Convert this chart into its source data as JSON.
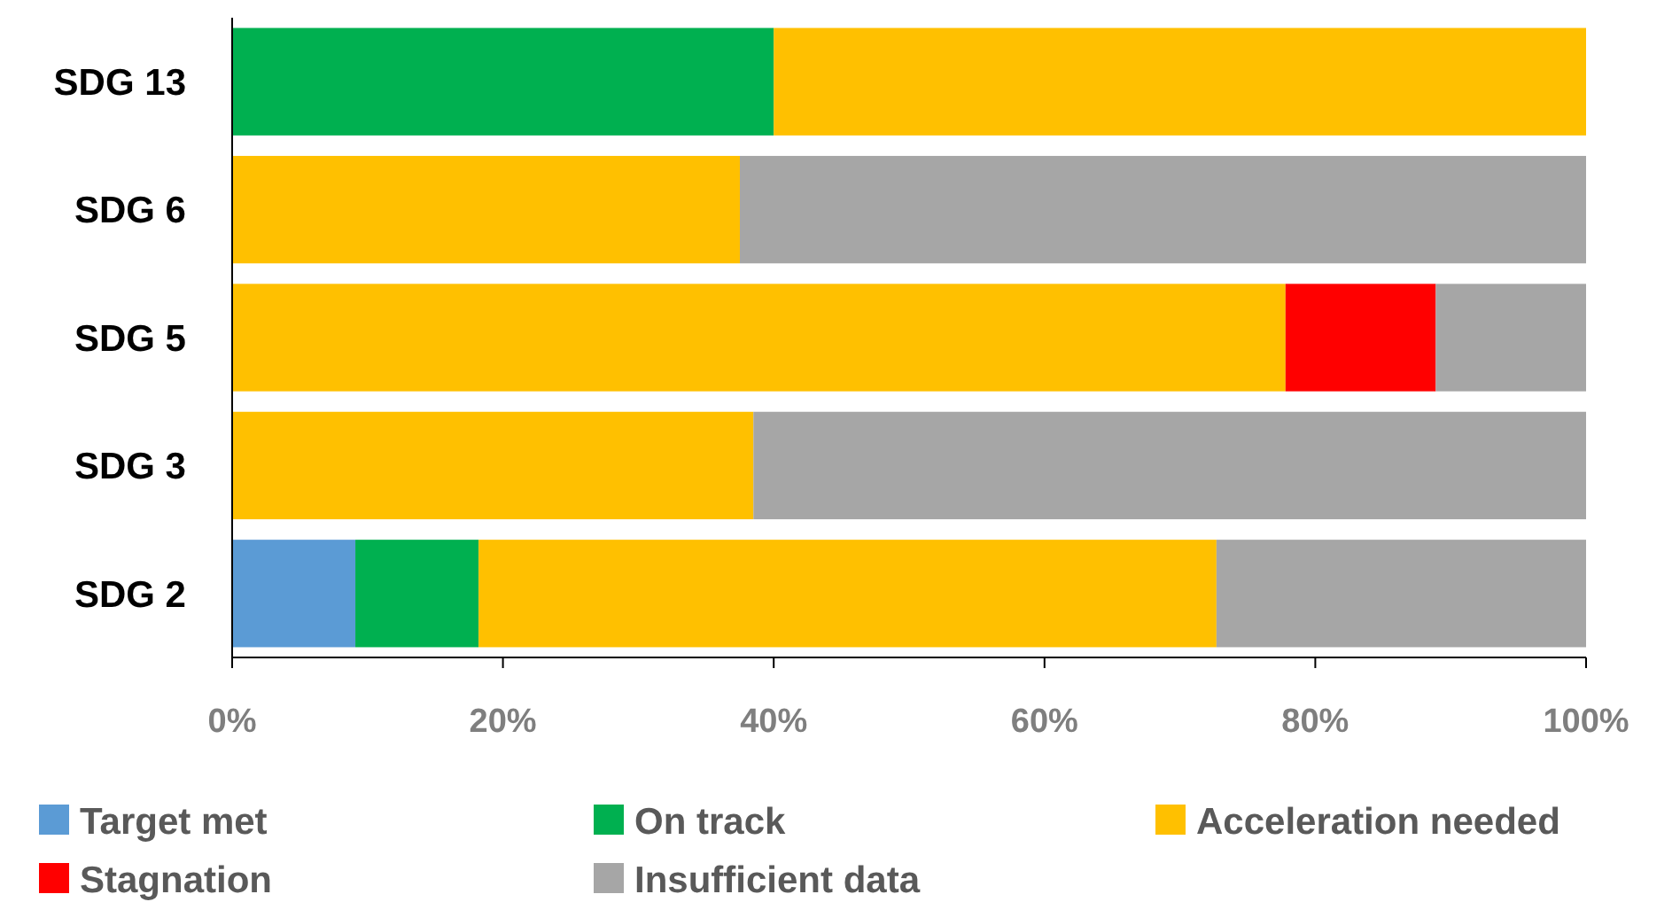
{
  "chart_data": {
    "type": "bar",
    "orientation": "horizontal",
    "stacked": true,
    "categories": [
      "SDG 13",
      "SDG 6",
      "SDG 5",
      "SDG 3",
      "SDG 2"
    ],
    "series": [
      {
        "name": "Target met",
        "color": "#5b9bd5",
        "values": [
          0,
          0,
          0,
          0,
          9.1
        ]
      },
      {
        "name": "On track",
        "color": "#00b050",
        "values": [
          40,
          0,
          0,
          0,
          9.1
        ]
      },
      {
        "name": "Acceleration needed",
        "color": "#ffc000",
        "values": [
          60,
          37.5,
          77.8,
          38.5,
          54.5
        ]
      },
      {
        "name": "Stagnation",
        "color": "#ff0000",
        "values": [
          0,
          0,
          11.1,
          0,
          0
        ]
      },
      {
        "name": "Insufficient data",
        "color": "#a6a6a6",
        "values": [
          0,
          62.5,
          11.1,
          61.5,
          27.3
        ]
      }
    ],
    "xlim": [
      0,
      100
    ],
    "xticks": [
      {
        "value": 0,
        "label": "0%"
      },
      {
        "value": 20,
        "label": "20%"
      },
      {
        "value": 40,
        "label": "40%"
      },
      {
        "value": 60,
        "label": "60%"
      },
      {
        "value": 80,
        "label": "80%"
      },
      {
        "value": 100,
        "label": "100%"
      }
    ],
    "grid": false,
    "legend": "bottom"
  }
}
